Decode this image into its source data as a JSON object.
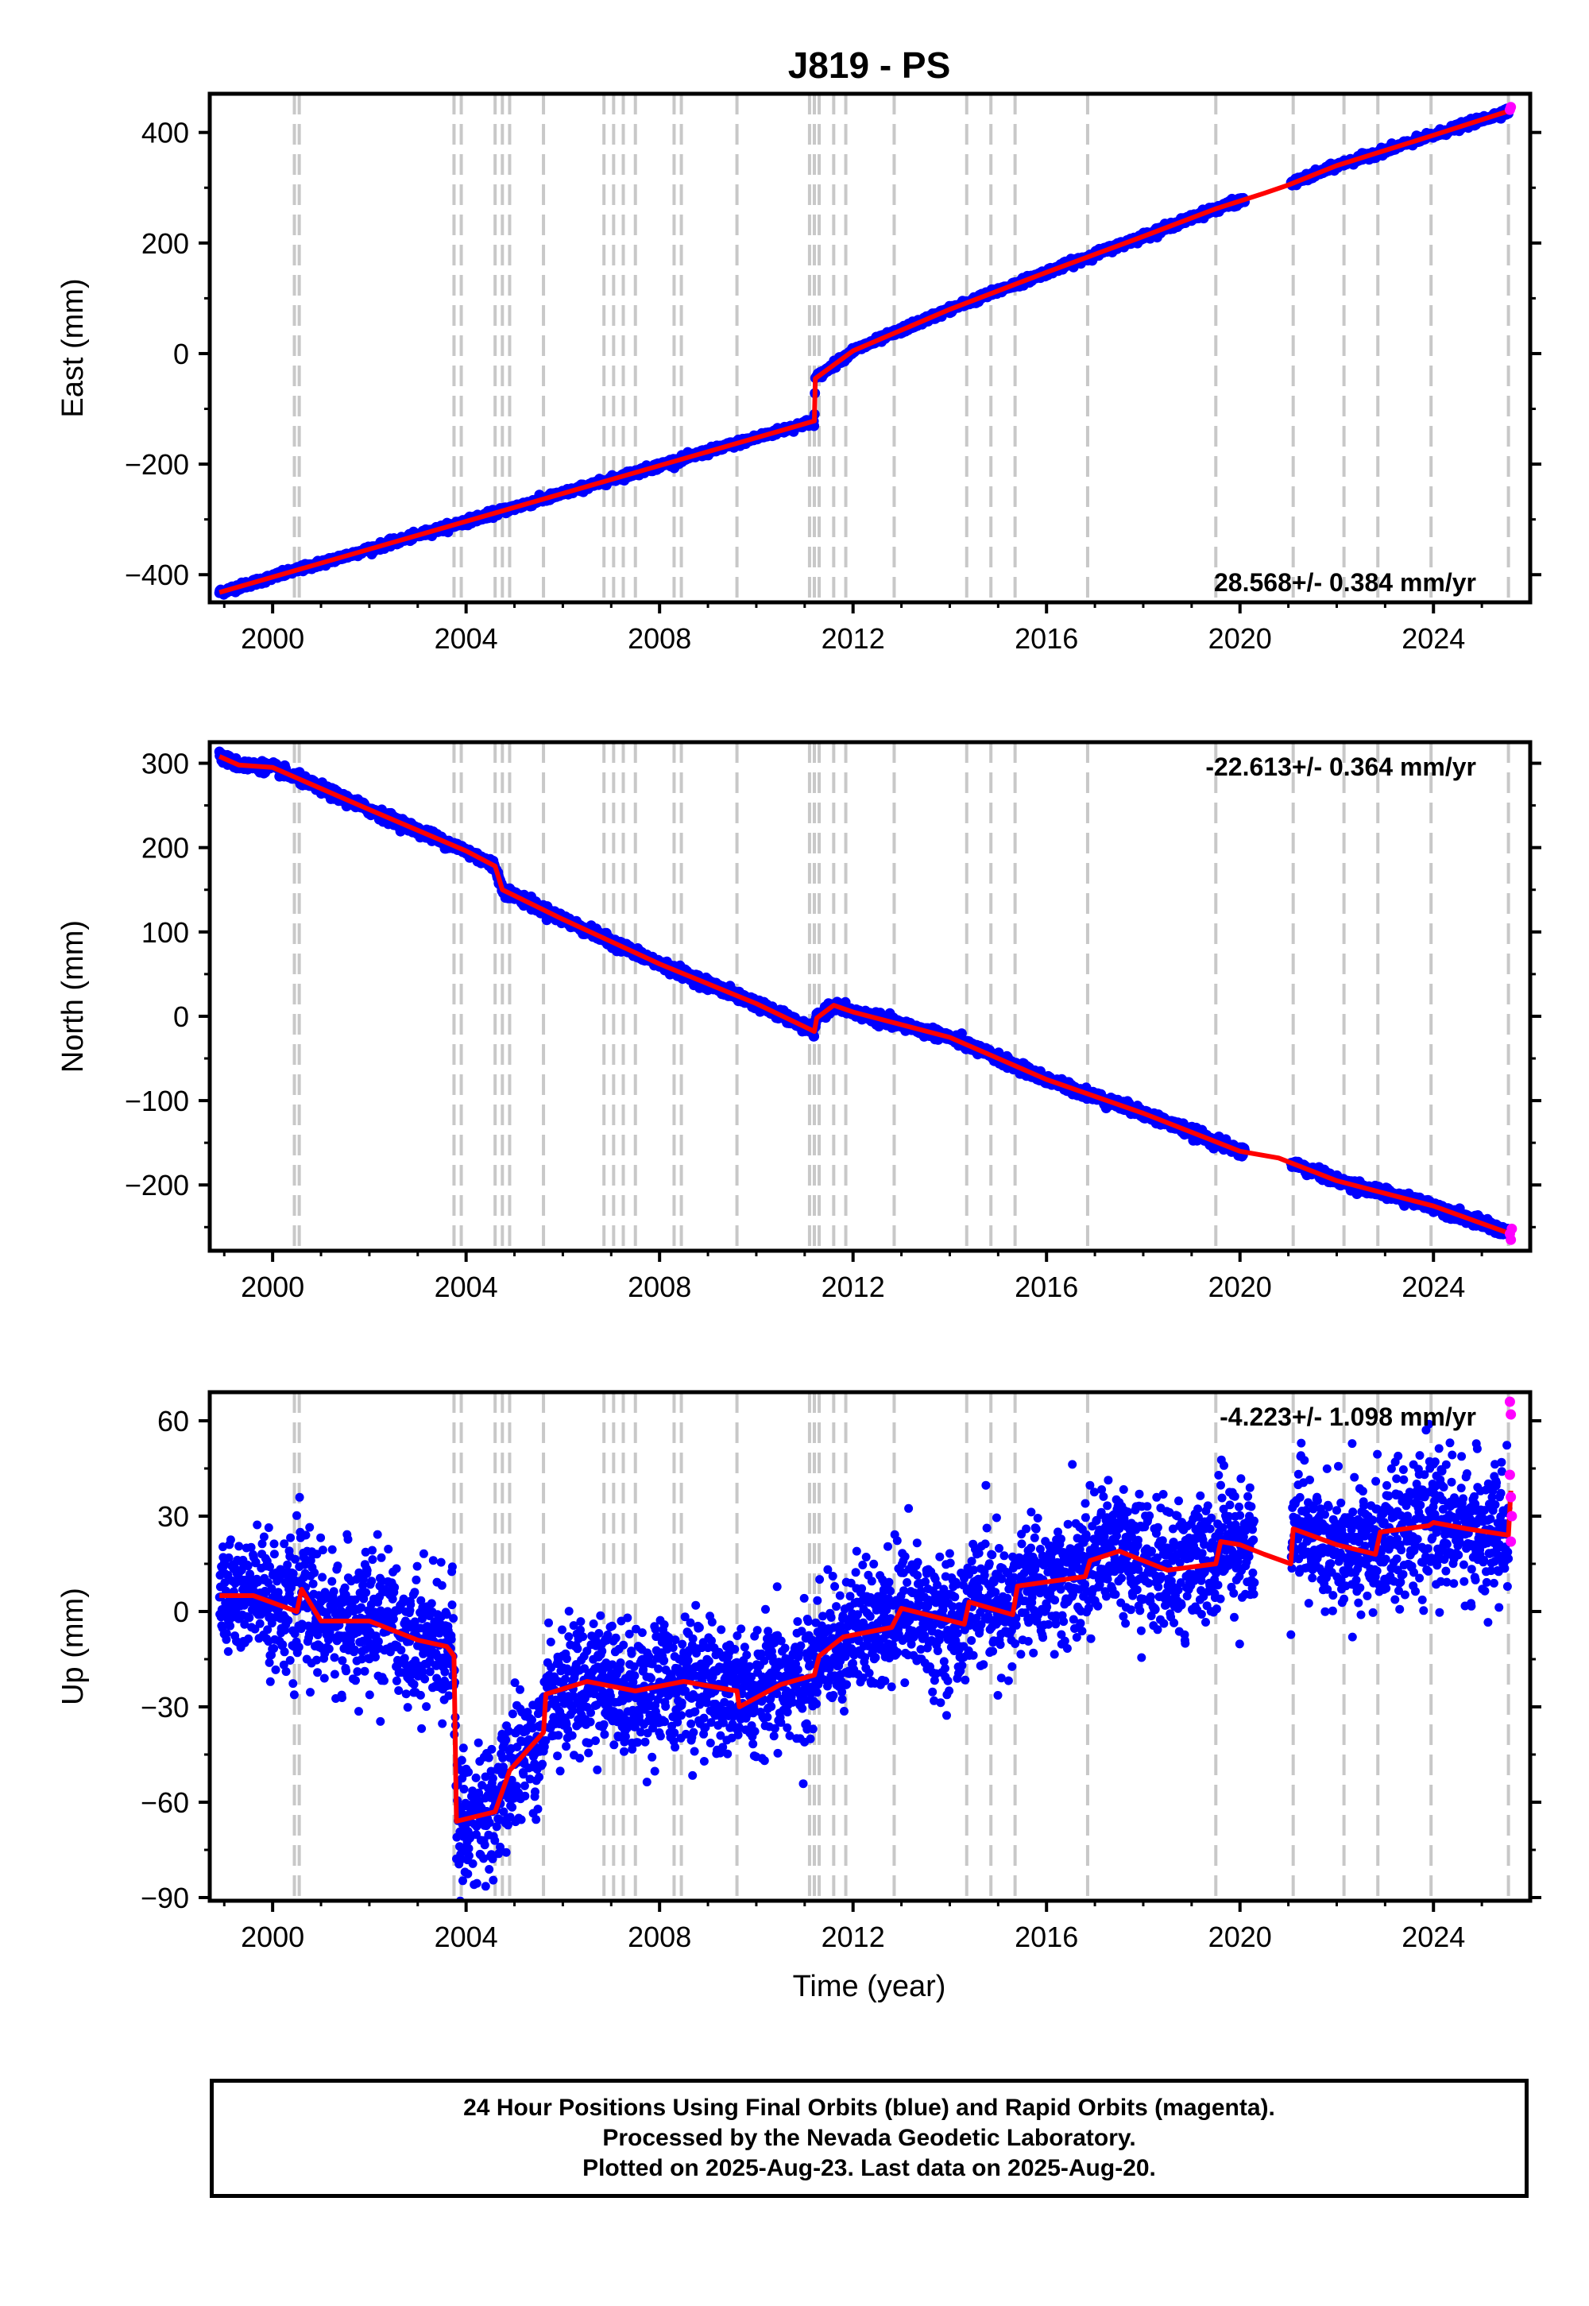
{
  "chart_data": {
    "type": "scatter",
    "title": "J819 - PS",
    "xlabel": "Time (year)",
    "xlim": [
      1998.7,
      2026.0
    ],
    "xticks": [
      2000,
      2004,
      2008,
      2012,
      2016,
      2020,
      2024
    ],
    "colors": {
      "final_orbits": "#0000ff",
      "rapid_orbits": "#ff00ff",
      "model": "#ff0000",
      "event_lines": "#c8c8c8",
      "frame": "#000000"
    },
    "event_lines_years": [
      2000.45,
      2000.55,
      2003.75,
      2003.9,
      2004.6,
      2004.75,
      2004.9,
      2005.6,
      2006.85,
      2007.05,
      2007.25,
      2007.5,
      2008.3,
      2008.45,
      2009.6,
      2011.1,
      2011.2,
      2011.3,
      2011.6,
      2011.85,
      2012.85,
      2014.35,
      2014.85,
      2015.35,
      2016.85,
      2019.5,
      2021.1,
      2022.15,
      2022.85,
      2023.95,
      2025.55
    ],
    "panels": [
      {
        "name": "East",
        "ylabel": "East (mm)",
        "ylim": [
          -450,
          470
        ],
        "yticks": [
          -400,
          -200,
          0,
          200,
          400
        ],
        "ytick_labels": [
          "−400",
          "−200",
          "0",
          "200",
          "400"
        ],
        "rate_label": "28.568+/- 0.384 mm/yr",
        "rate_position": "bottom-right",
        "scatter": 3,
        "model": [
          [
            1998.9,
            -432
          ],
          [
            2011.2,
            -122
          ],
          [
            2011.22,
            -45
          ],
          [
            2012.0,
            5
          ],
          [
            2014.0,
            80
          ],
          [
            2016.0,
            147
          ],
          [
            2018.0,
            212
          ],
          [
            2019.5,
            262
          ],
          [
            2020.5,
            290
          ],
          [
            2021.0,
            305
          ],
          [
            2022.0,
            340
          ],
          [
            2024.0,
            395
          ],
          [
            2025.6,
            440
          ]
        ],
        "gaps": [
          [
            2020.1,
            2021.05
          ]
        ],
        "rapid": [
          [
            2025.58,
            441
          ],
          [
            2025.6,
            446
          ]
        ]
      },
      {
        "name": "North",
        "ylabel": "North (mm)",
        "ylim": [
          -278,
          325
        ],
        "yticks": [
          -200,
          -100,
          0,
          100,
          200,
          300
        ],
        "ytick_labels": [
          "−200",
          "−100",
          "0",
          "100",
          "200",
          "300"
        ],
        "rate_label": "-22.613+/- 0.364 mm/yr",
        "rate_position": "top-right",
        "scatter": 3,
        "model": [
          [
            1998.9,
            308
          ],
          [
            1999.3,
            298
          ],
          [
            2000.0,
            295
          ],
          [
            2002.0,
            245
          ],
          [
            2004.0,
            196
          ],
          [
            2004.6,
            178
          ],
          [
            2004.75,
            150
          ],
          [
            2006.0,
            115
          ],
          [
            2008.0,
            62
          ],
          [
            2010.0,
            15
          ],
          [
            2011.2,
            -18
          ],
          [
            2011.25,
            -2
          ],
          [
            2011.6,
            13
          ],
          [
            2012.0,
            5
          ],
          [
            2014.0,
            -25
          ],
          [
            2016.0,
            -75
          ],
          [
            2018.0,
            -115
          ],
          [
            2020.0,
            -160
          ],
          [
            2020.8,
            -168
          ],
          [
            2022.0,
            -195
          ],
          [
            2024.0,
            -225
          ],
          [
            2025.6,
            -258
          ]
        ],
        "gaps": [
          [
            2020.1,
            2021.05
          ]
        ],
        "rapid": [
          [
            2025.58,
            -258
          ],
          [
            2025.6,
            -265
          ],
          [
            2025.62,
            -252
          ]
        ]
      },
      {
        "name": "Up",
        "ylabel": "Up (mm)",
        "ylim": [
          -91,
          69
        ],
        "yticks": [
          -90,
          -60,
          -30,
          0,
          30,
          60
        ],
        "ytick_labels": [
          "−90",
          "−60",
          "−30",
          "0",
          "30",
          "60"
        ],
        "rate_label": "-4.223+/- 1.098 mm/yr",
        "rate_position": "top-right",
        "scatter": 10,
        "model": [
          [
            1998.9,
            5
          ],
          [
            1999.6,
            5
          ],
          [
            2000.5,
            0
          ],
          [
            2000.6,
            7
          ],
          [
            2001.0,
            -3
          ],
          [
            2002.0,
            -3
          ],
          [
            2003.0,
            -9
          ],
          [
            2003.6,
            -11
          ],
          [
            2003.75,
            -14
          ],
          [
            2003.8,
            -66
          ],
          [
            2004.6,
            -63
          ],
          [
            2004.9,
            -50
          ],
          [
            2005.6,
            -38
          ],
          [
            2005.65,
            -26
          ],
          [
            2006.5,
            -22
          ],
          [
            2007.5,
            -25
          ],
          [
            2008.5,
            -22
          ],
          [
            2009.6,
            -25
          ],
          [
            2009.65,
            -30
          ],
          [
            2010.5,
            -23
          ],
          [
            2011.2,
            -20
          ],
          [
            2011.3,
            -14
          ],
          [
            2011.8,
            -8
          ],
          [
            2012.8,
            -5
          ],
          [
            2013.0,
            1
          ],
          [
            2014.3,
            -4
          ],
          [
            2014.4,
            3
          ],
          [
            2015.3,
            -1
          ],
          [
            2015.4,
            8
          ],
          [
            2016.8,
            11
          ],
          [
            2016.9,
            16
          ],
          [
            2017.5,
            19
          ],
          [
            2018.5,
            13
          ],
          [
            2019.5,
            15
          ],
          [
            2019.6,
            22
          ],
          [
            2020.0,
            21
          ],
          [
            2020.5,
            18
          ],
          [
            2021.05,
            15
          ],
          [
            2021.1,
            26
          ],
          [
            2022.0,
            21
          ],
          [
            2022.8,
            18
          ],
          [
            2022.9,
            25
          ],
          [
            2023.9,
            27
          ],
          [
            2024.0,
            28
          ],
          [
            2024.7,
            26
          ],
          [
            2025.55,
            24
          ],
          [
            2025.6,
            38
          ]
        ],
        "gaps": [
          [
            2020.3,
            2021.05
          ]
        ],
        "rapid": [
          [
            2025.58,
            66
          ],
          [
            2025.6,
            62
          ],
          [
            2025.58,
            43
          ],
          [
            2025.6,
            36
          ],
          [
            2025.62,
            30
          ],
          [
            2025.6,
            22
          ]
        ]
      }
    ]
  },
  "footer": {
    "line1": "24 Hour Positions Using Final Orbits (blue) and Rapid Orbits (magenta).",
    "line2": "Processed by the Nevada Geodetic Laboratory.",
    "line3": "Plotted on 2025-Aug-23. Last data on 2025-Aug-20."
  }
}
